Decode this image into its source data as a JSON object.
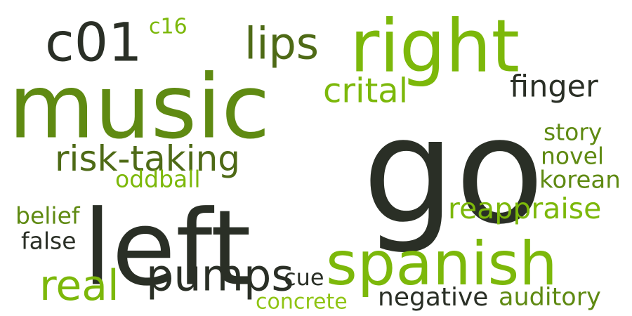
{
  "colors": {
    "dark": "#2a2f26",
    "dark_olive": "#33401f",
    "olive": "#4e6a16",
    "green": "#5f8a12",
    "lime": "#7cb80a",
    "light_lime": "#8fc413"
  },
  "words": [
    {
      "id": "go",
      "text": "go",
      "color": "#2a2f26"
    },
    {
      "id": "music",
      "text": "music",
      "color": "#5f8a12"
    },
    {
      "id": "left",
      "text": "left",
      "color": "#2a2f26"
    },
    {
      "id": "right",
      "text": "right",
      "color": "#7cb80a"
    },
    {
      "id": "spanish",
      "text": "spanish",
      "color": "#7cb80a"
    },
    {
      "id": "c01",
      "text": "c01",
      "color": "#2a2f26"
    },
    {
      "id": "lips",
      "text": "lips",
      "color": "#4e6a16"
    },
    {
      "id": "pumps",
      "text": "pumps",
      "color": "#2a2f26"
    },
    {
      "id": "real",
      "text": "real",
      "color": "#7cb80a"
    },
    {
      "id": "risk-taking",
      "text": "risk-taking",
      "color": "#4e6a16"
    },
    {
      "id": "crital",
      "text": "crital",
      "color": "#7cb80a"
    },
    {
      "id": "finger",
      "text": "finger",
      "color": "#2a2f26"
    },
    {
      "id": "reappraise",
      "text": "reappraise",
      "color": "#7cb80a"
    },
    {
      "id": "negative",
      "text": "negative",
      "color": "#2a2f26"
    },
    {
      "id": "auditory",
      "text": "auditory",
      "color": "#5f8a12"
    },
    {
      "id": "korean",
      "text": "korean",
      "color": "#5f8a12"
    },
    {
      "id": "novel",
      "text": "novel",
      "color": "#5f8a12"
    },
    {
      "id": "story",
      "text": "story",
      "color": "#5f8a12"
    },
    {
      "id": "oddball",
      "text": "oddball",
      "color": "#7cb80a"
    },
    {
      "id": "belief",
      "text": "belief",
      "color": "#5f8a12"
    },
    {
      "id": "false",
      "text": "false",
      "color": "#2a2f26"
    },
    {
      "id": "cue",
      "text": "cue",
      "color": "#2a2f26"
    },
    {
      "id": "concrete",
      "text": "concrete",
      "color": "#8fc413"
    },
    {
      "id": "c16",
      "text": "c16",
      "color": "#7cb80a"
    }
  ]
}
